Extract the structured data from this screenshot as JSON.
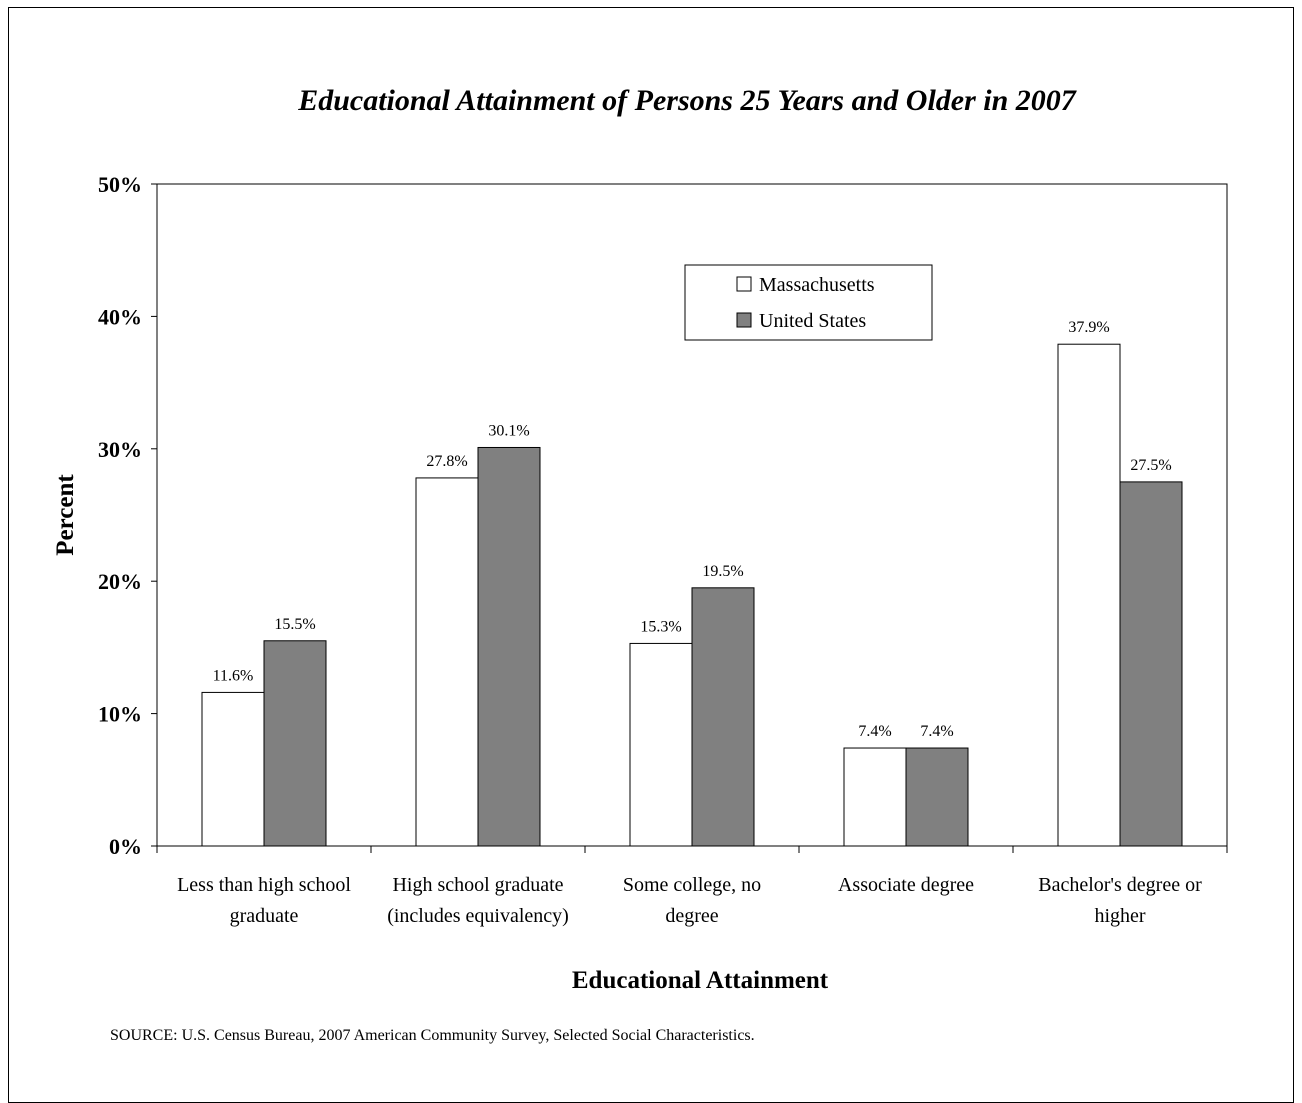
{
  "chart_data": {
    "type": "bar",
    "title": "Educational Attainment of Persons 25 Years and Older in 2007",
    "xlabel": "Educational Attainment",
    "ylabel": "Percent",
    "ylim": [
      0,
      50
    ],
    "yticks": [
      "0%",
      "10%",
      "20%",
      "30%",
      "40%",
      "50%"
    ],
    "categories": [
      [
        "Less than high school",
        "graduate"
      ],
      [
        "High school graduate",
        "(includes equivalency)"
      ],
      [
        "Some college, no",
        "degree"
      ],
      [
        "Associate degree"
      ],
      [
        "Bachelor's degree or",
        "higher"
      ]
    ],
    "series": [
      {
        "name": "Massachusetts",
        "values": [
          11.6,
          27.8,
          15.3,
          7.4,
          37.9
        ],
        "labels": [
          "11.6%",
          "27.8%",
          "15.3%",
          "7.4%",
          "37.9%"
        ],
        "color": "#ffffff"
      },
      {
        "name": "United States",
        "values": [
          15.5,
          30.1,
          19.5,
          7.4,
          27.5
        ],
        "labels": [
          "15.5%",
          "30.1%",
          "19.5%",
          "7.4%",
          "27.5%"
        ],
        "color": "#808080"
      }
    ],
    "grid": false,
    "legend_position": "top-center",
    "source": "SOURCE: U.S. Census Bureau, 2007 American Community Survey, Selected Social Characteristics."
  }
}
